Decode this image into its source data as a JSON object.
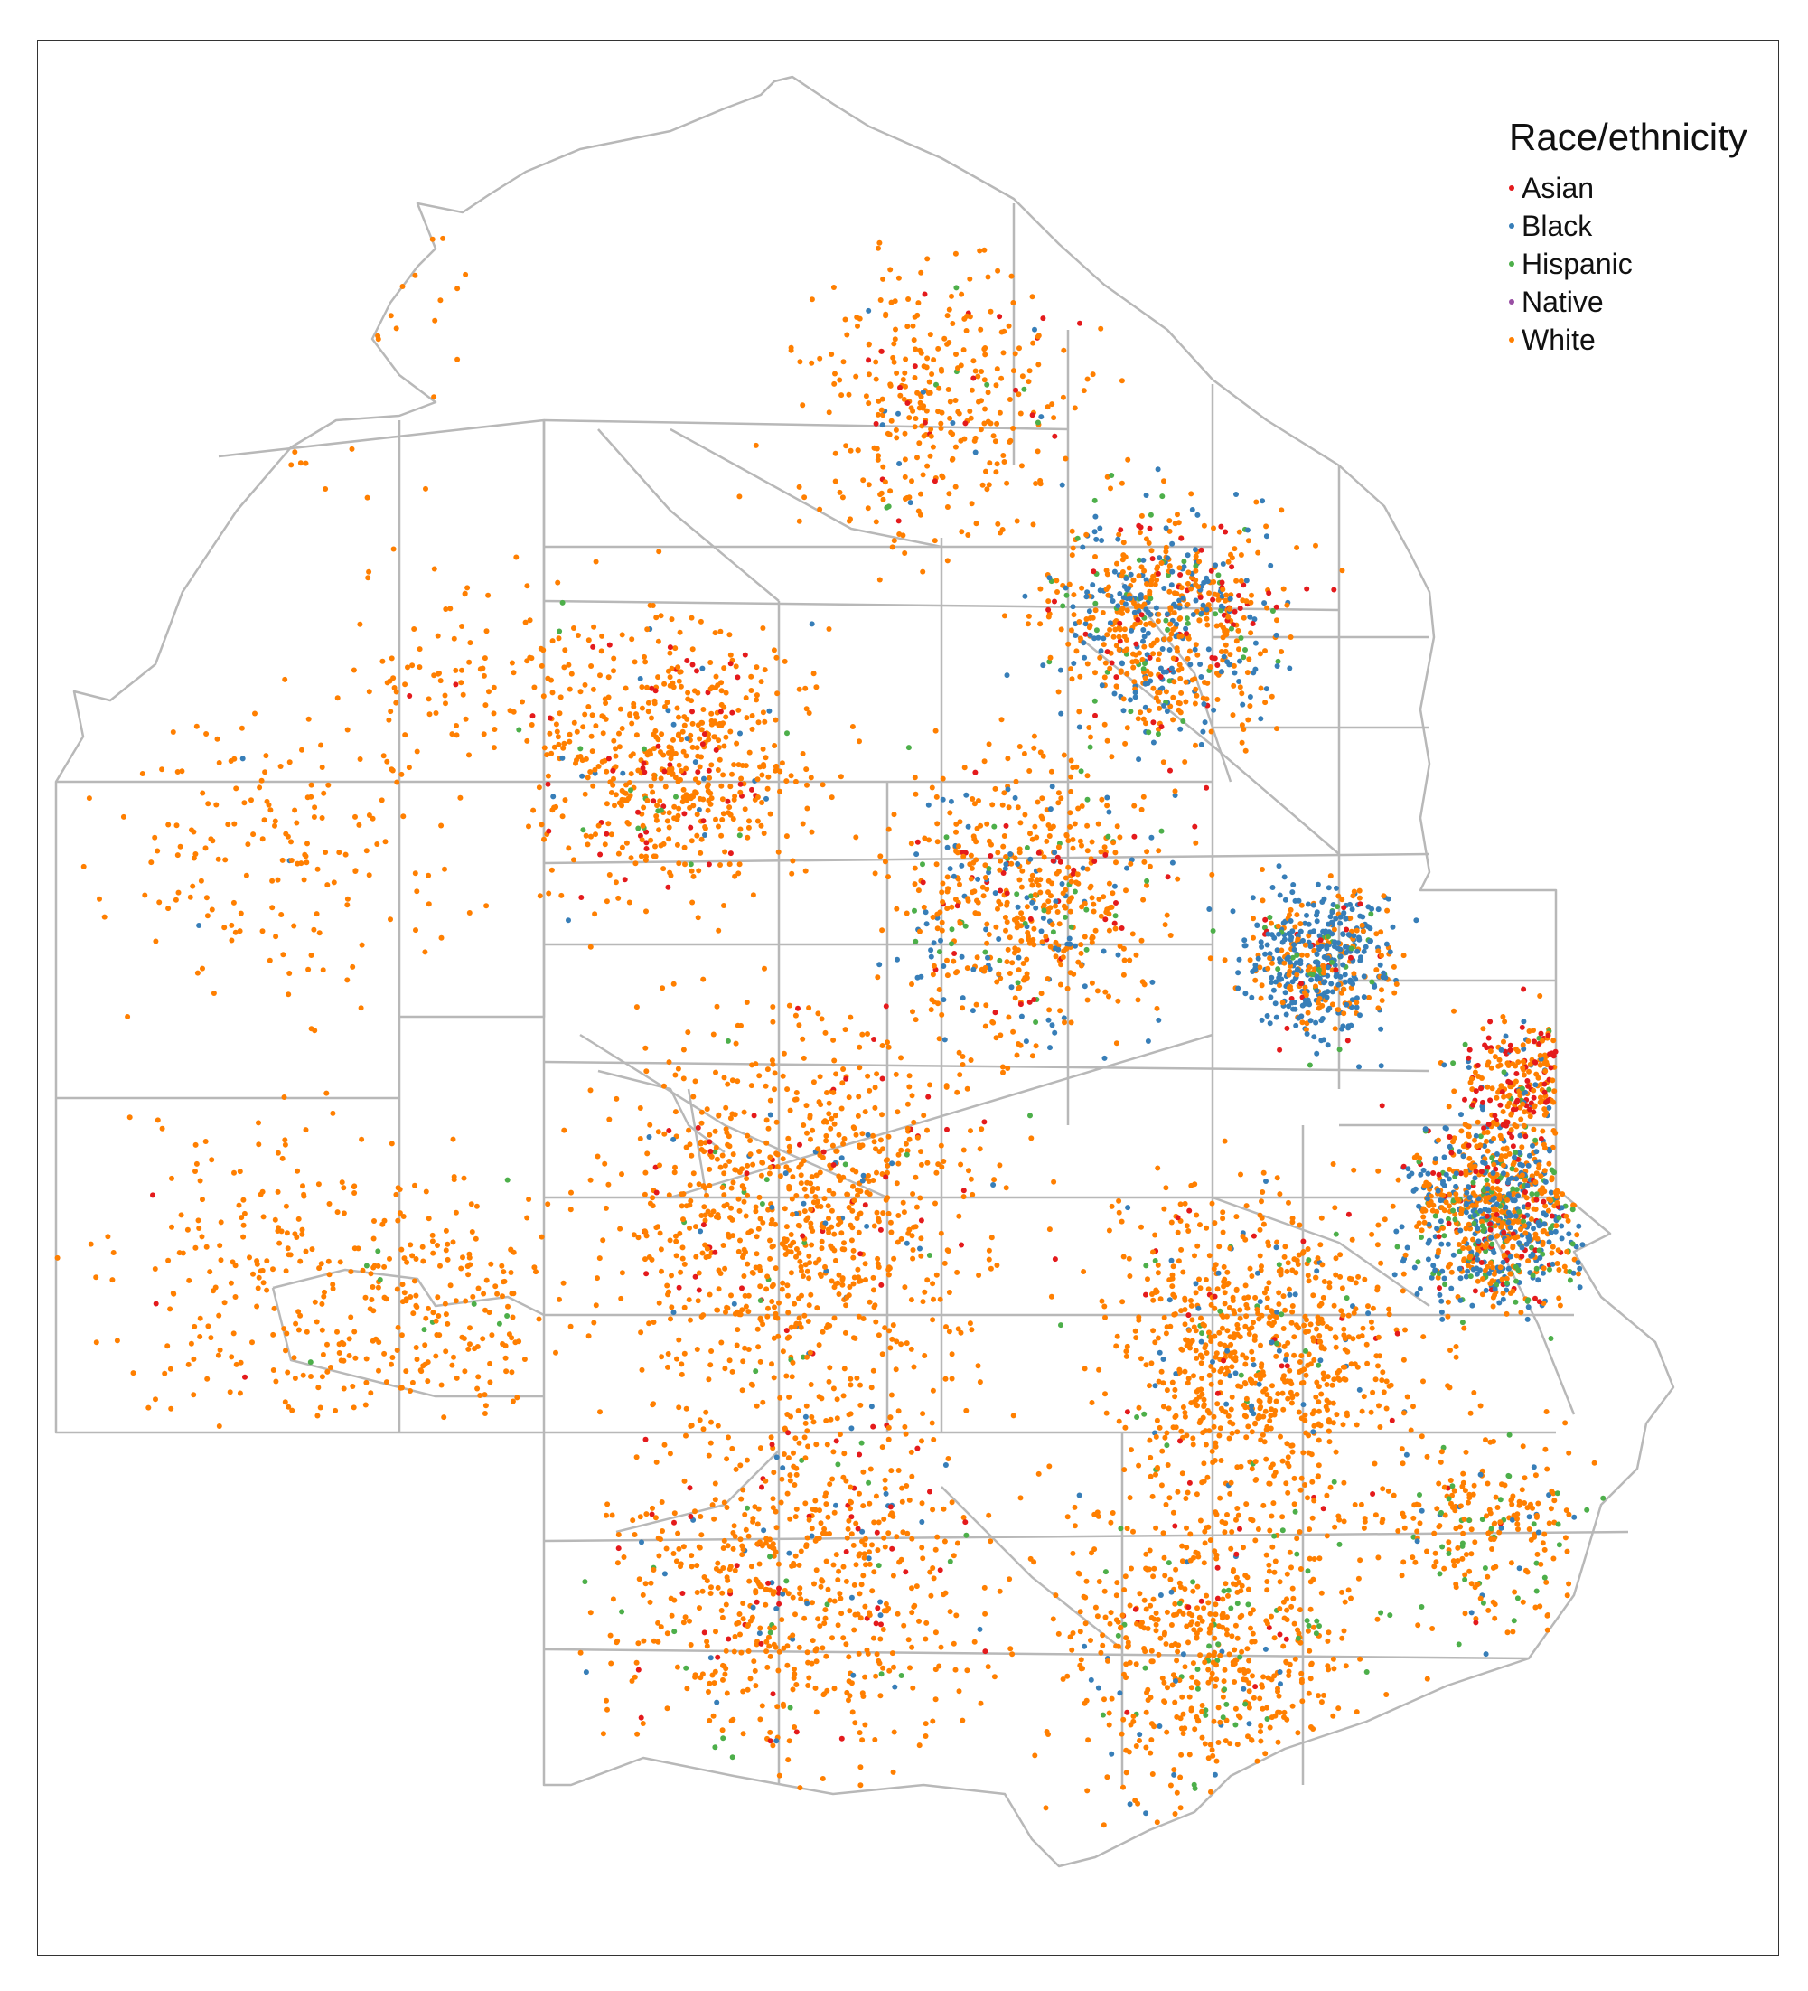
{
  "legend": {
    "title": "Race/ethnicity",
    "items": [
      {
        "label": "Asian",
        "color": "#e41a1c"
      },
      {
        "label": "Black",
        "color": "#377eb8"
      },
      {
        "label": "Hispanic",
        "color": "#4daf4a"
      },
      {
        "label": "Native",
        "color": "#984ea3"
      },
      {
        "label": "White",
        "color": "#ff7f00"
      }
    ]
  },
  "colors": {
    "boundary": "#b8b8b8",
    "frame": "#333333",
    "background": "#ffffff"
  },
  "map": {
    "type": "dot-density",
    "unit": "census tract boundaries",
    "dominant_group": "White",
    "notes_visible": false
  }
}
